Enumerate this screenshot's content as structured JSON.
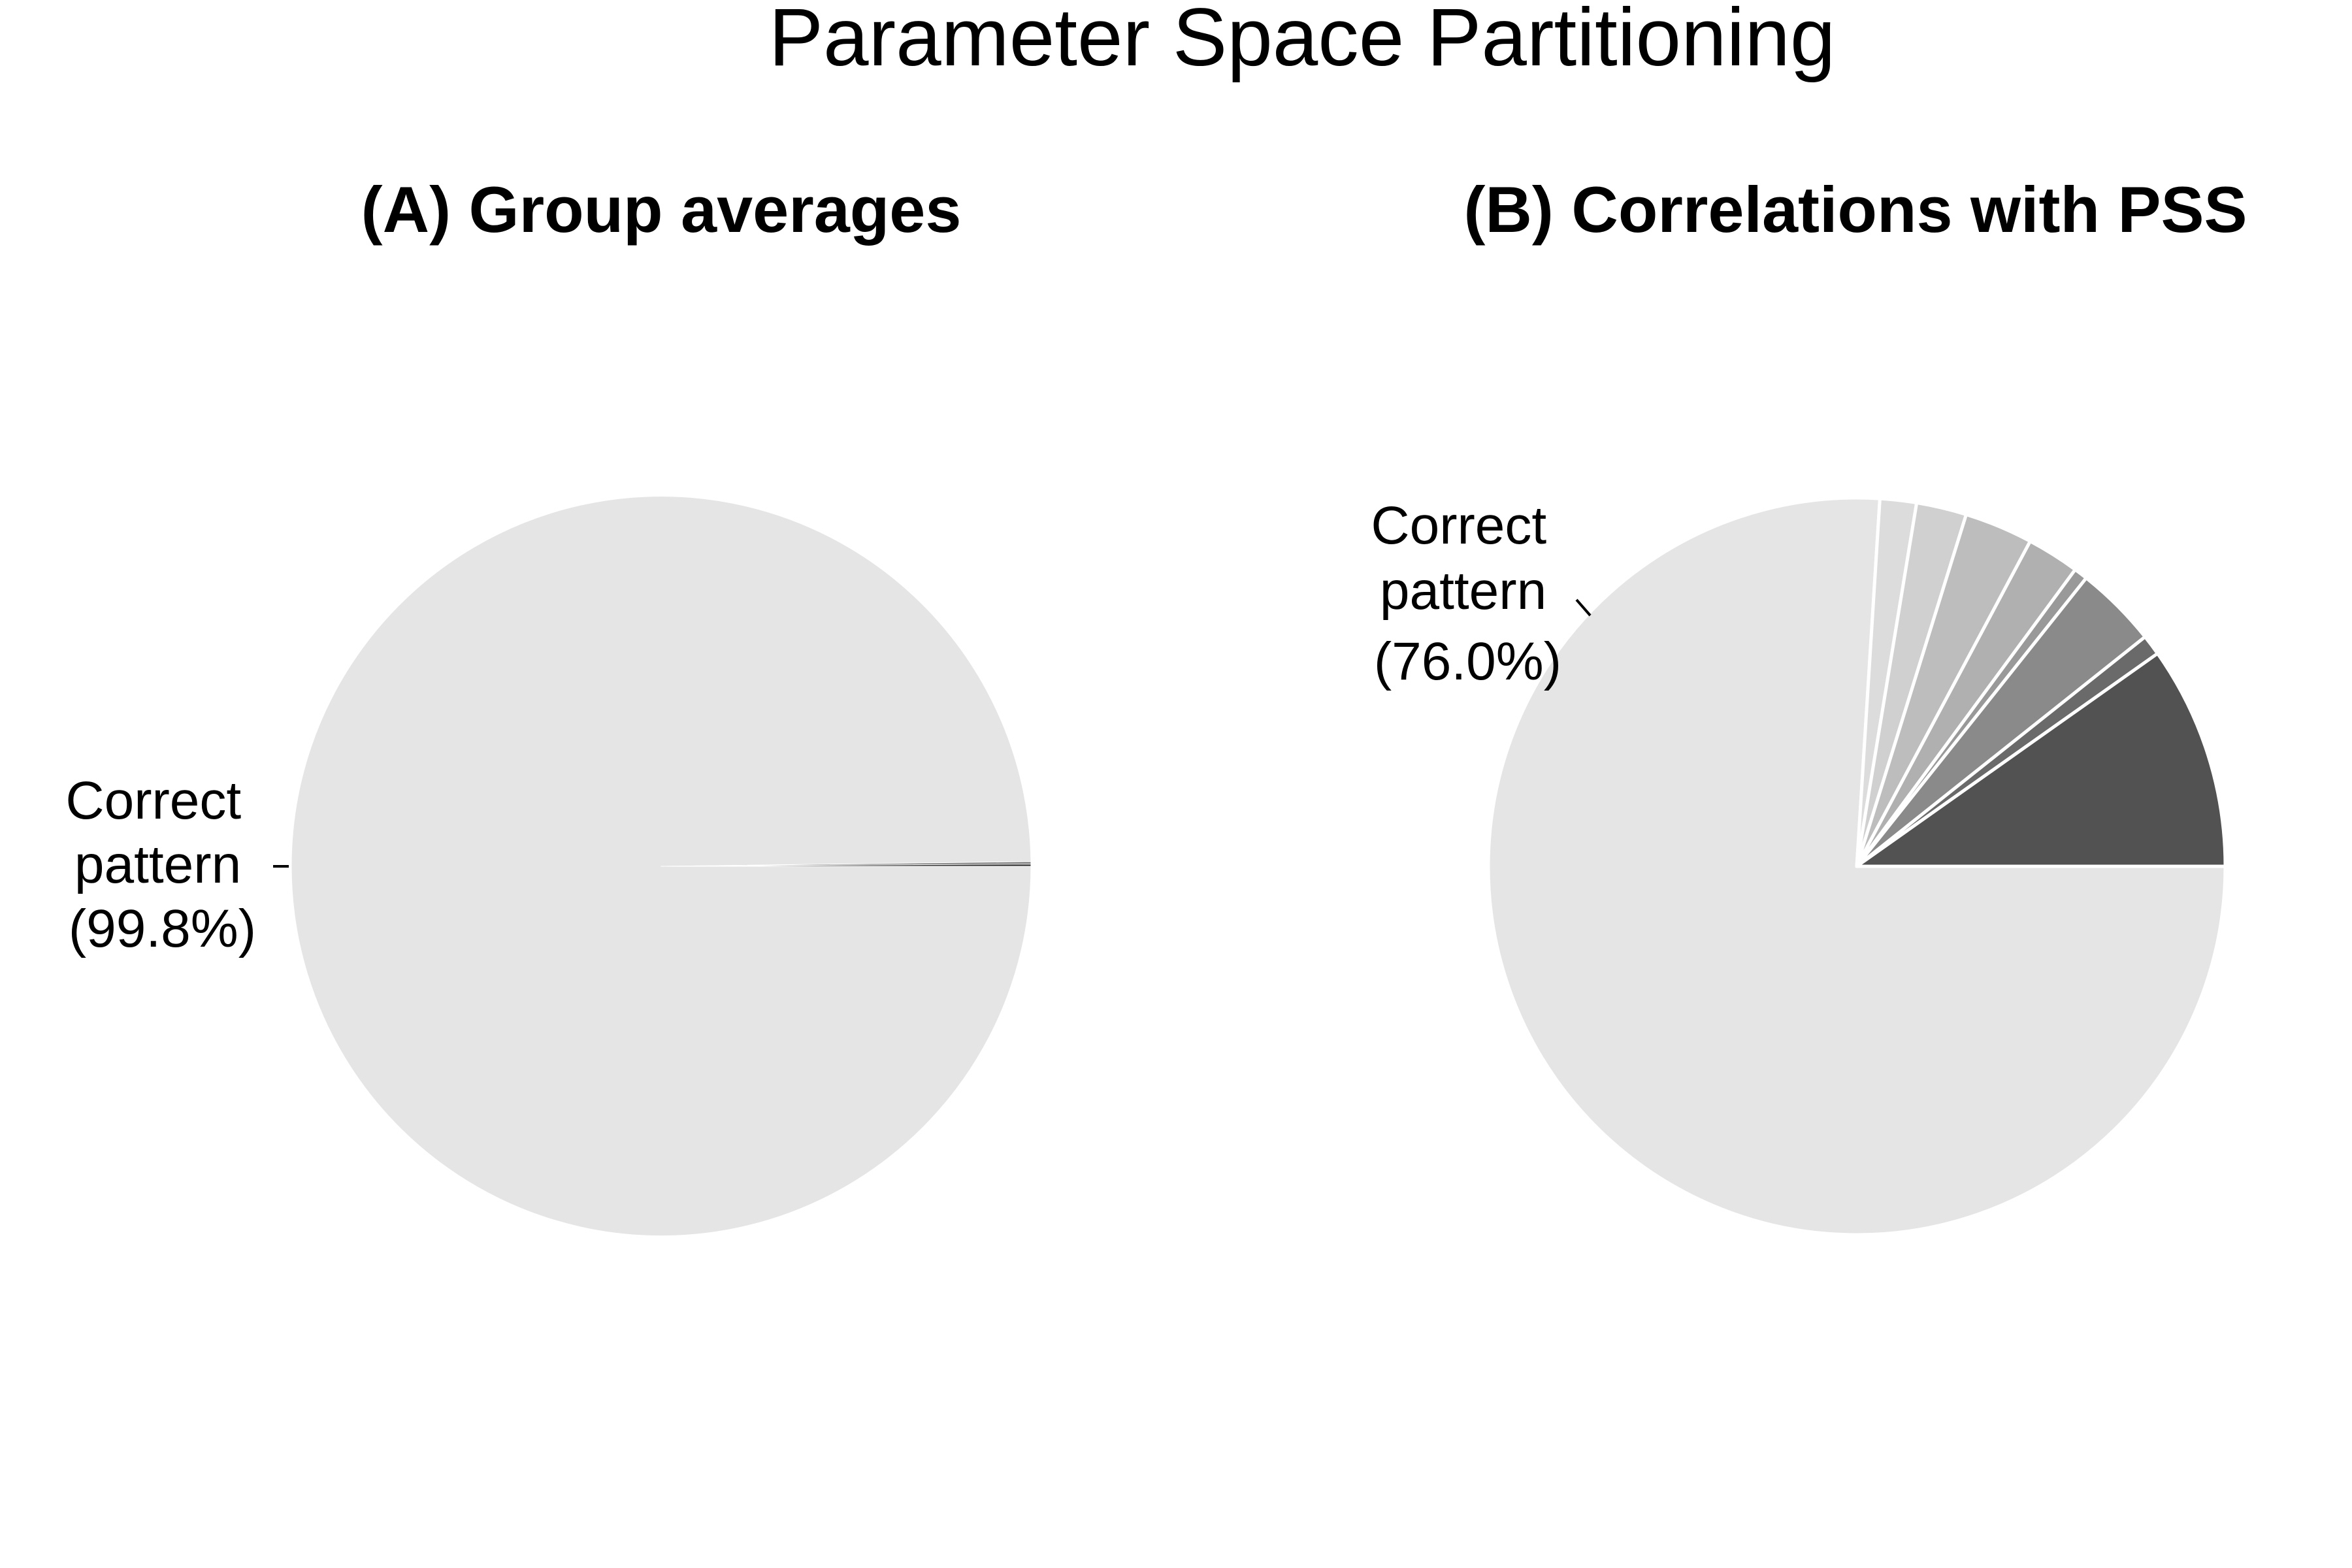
{
  "title": "Parameter Space Partitioning",
  "chart_data": [
    {
      "type": "pie",
      "title": "(A) Group averages",
      "slices": [
        {
          "label": "Correct pattern",
          "percent_label": "(99.8%)",
          "value": 99.8,
          "color": "#e5e5e5"
        },
        {
          "label": "",
          "value": 0.1,
          "color": "#7a7a7a"
        },
        {
          "label": "",
          "value": 0.1,
          "color": "#333333"
        }
      ],
      "callouts": [
        {
          "slice": 0,
          "lines": [
            "Correct",
            "pattern",
            "(99.8%)"
          ]
        }
      ]
    },
    {
      "type": "pie",
      "title": "(B) Correlations with PSS",
      "slices": [
        {
          "label": "Correct pattern",
          "percent_label": "(76.0%)",
          "value": 76.0,
          "color": "#e5e5e5"
        },
        {
          "label": "",
          "value": 1.6,
          "color": "#dcdcdc"
        },
        {
          "label": "",
          "value": 2.2,
          "color": "#d0d0d0"
        },
        {
          "label": "",
          "value": 3.0,
          "color": "#bdbdbd"
        },
        {
          "label": "",
          "value": 2.3,
          "color": "#b0b0b0"
        },
        {
          "label": "",
          "value": 0.6,
          "color": "#999999"
        },
        {
          "label": "",
          "value": 3.6,
          "color": "#8a8a8a"
        },
        {
          "label": "",
          "value": 0.9,
          "color": "#6a6a6a"
        },
        {
          "label": "",
          "value": 9.8,
          "color": "#525252"
        }
      ],
      "callouts": [
        {
          "slice": 0,
          "lines": [
            "Correct",
            "pattern",
            "(76.0%)"
          ]
        }
      ]
    }
  ]
}
